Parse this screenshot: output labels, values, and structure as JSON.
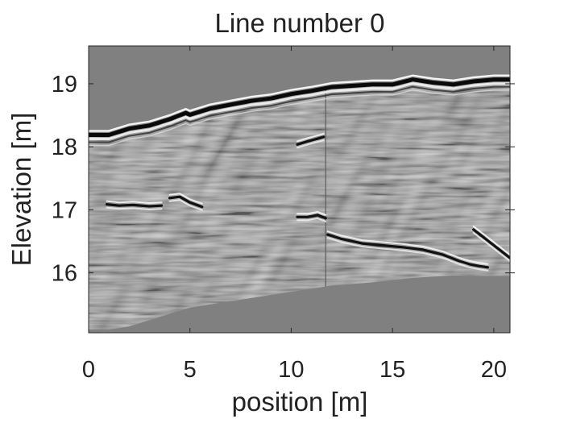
{
  "chart_data": {
    "type": "heatmap",
    "title": "Line number 0",
    "xlabel": "position [m]",
    "ylabel": "Elevation [m]",
    "xlim": [
      0,
      20.8
    ],
    "ylim": [
      15.05,
      19.6
    ],
    "x_ticks": [
      0,
      5,
      10,
      15,
      20
    ],
    "y_ticks": [
      16,
      17,
      18,
      19
    ],
    "colormap": "gray",
    "background_color": "#808080",
    "surface_elevation": {
      "x": [
        0,
        1,
        2,
        3,
        4,
        4.8,
        5,
        6,
        7,
        8,
        9,
        10,
        11,
        12,
        13,
        14,
        15,
        16,
        17,
        18,
        19,
        20,
        20.8
      ],
      "y": [
        18.2,
        18.2,
        18.3,
        18.35,
        18.45,
        18.55,
        18.52,
        18.62,
        18.68,
        18.74,
        18.78,
        18.85,
        18.9,
        18.96,
        18.98,
        19.0,
        19.0,
        19.08,
        19.03,
        19.0,
        19.05,
        19.08,
        19.08
      ]
    },
    "bottom_elevation": {
      "x": [
        0,
        1,
        2,
        3,
        4,
        5,
        6,
        8,
        10,
        12,
        14,
        16,
        18,
        19.5,
        20.8
      ],
      "y": [
        15.1,
        15.1,
        15.15,
        15.25,
        15.35,
        15.45,
        15.5,
        15.6,
        15.7,
        15.8,
        15.85,
        15.92,
        15.96,
        15.95,
        15.95
      ]
    },
    "reflectors": [
      {
        "x": [
          0.9,
          1.5,
          2.2,
          3.0,
          3.6
        ],
        "y": [
          17.1,
          17.08,
          17.09,
          17.07,
          17.08
        ]
      },
      {
        "x": [
          4.0,
          4.5,
          5.0,
          5.6
        ],
        "y": [
          17.2,
          17.22,
          17.13,
          17.06
        ]
      },
      {
        "x": [
          10.3,
          10.8,
          11.3,
          11.6
        ],
        "y": [
          18.05,
          18.1,
          18.14,
          18.17
        ]
      },
      {
        "x": [
          10.3,
          10.8,
          11.3,
          11.7
        ],
        "y": [
          16.9,
          16.9,
          16.93,
          16.88
        ]
      },
      {
        "x": [
          11.8,
          12.5,
          13.5,
          14.5,
          15.5,
          16.5,
          17.5,
          18.3,
          18.8,
          19.3,
          19.7
        ],
        "y": [
          16.62,
          16.55,
          16.48,
          16.45,
          16.42,
          16.38,
          16.3,
          16.2,
          16.15,
          16.12,
          16.1
        ]
      },
      {
        "x": [
          19.0,
          19.6,
          20.2,
          20.8
        ],
        "y": [
          16.7,
          16.55,
          16.4,
          16.25
        ]
      }
    ],
    "discontinuity_x": 11.7
  }
}
